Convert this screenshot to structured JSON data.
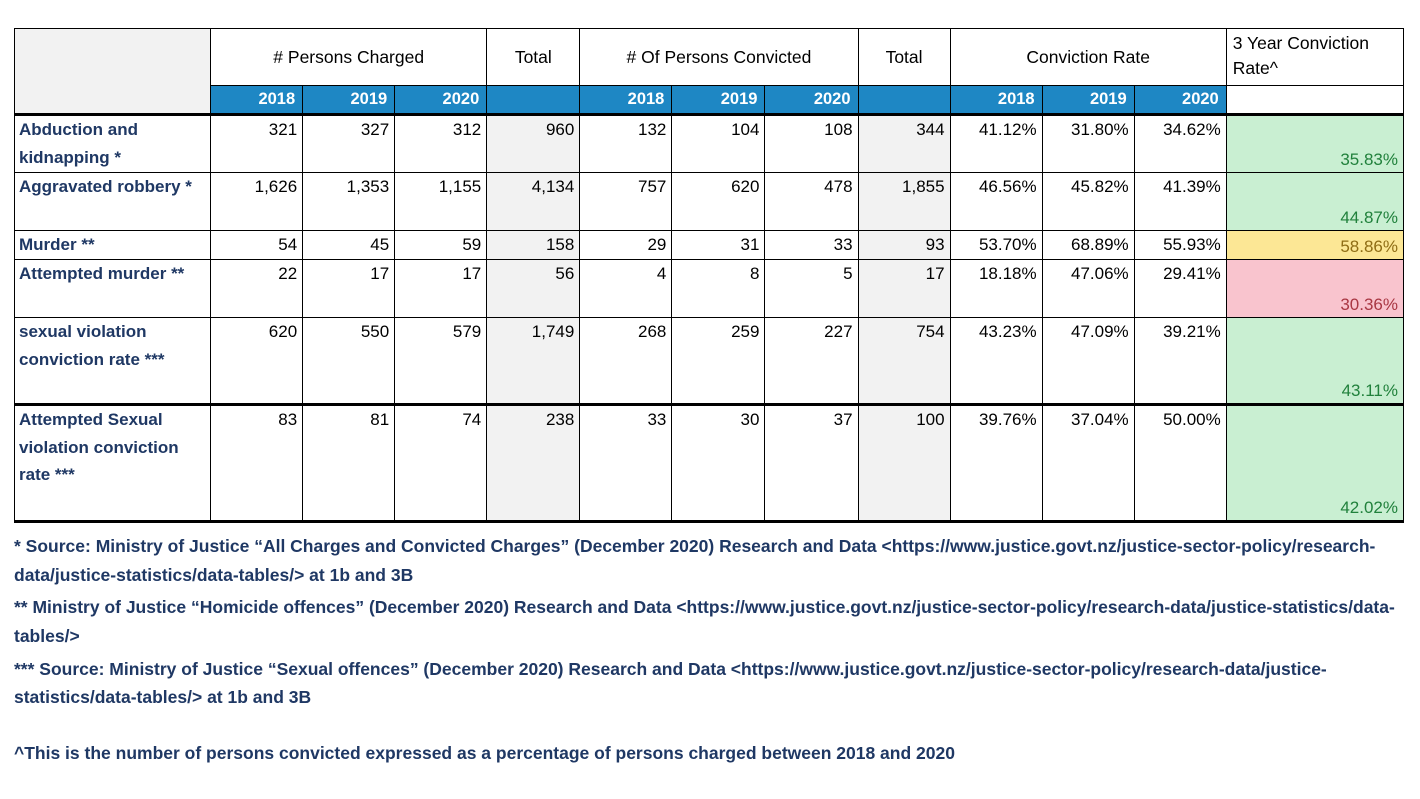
{
  "header": {
    "charged_group": "# Persons Charged",
    "total1": "Total",
    "convicted_group": "# Of Persons Convicted",
    "total2": "Total",
    "rate_group": "Conviction Rate",
    "three_year_group": "3 Year Conviction Rate^",
    "years": [
      "2018",
      "2019",
      "2020"
    ]
  },
  "rows": [
    {
      "label": "Abduction and kidnapping *",
      "charged": [
        "321",
        "327",
        "312"
      ],
      "charged_total": "960",
      "convicted": [
        "132",
        "104",
        "108"
      ],
      "convicted_total": "344",
      "rates": [
        "41.12%",
        "31.80%",
        "34.62%"
      ],
      "three_year_rate": "35.83%",
      "three_year_status": "good"
    },
    {
      "label": "Aggravated robbery *",
      "charged": [
        "1,626",
        "1,353",
        "1,155"
      ],
      "charged_total": "4,134",
      "convicted": [
        "757",
        "620",
        "478"
      ],
      "convicted_total": "1,855",
      "rates": [
        "46.56%",
        "45.82%",
        "41.39%"
      ],
      "three_year_rate": "44.87%",
      "three_year_status": "good"
    },
    {
      "label": "Murder **",
      "charged": [
        "54",
        "45",
        "59"
      ],
      "charged_total": "158",
      "convicted": [
        "29",
        "31",
        "33"
      ],
      "convicted_total": "93",
      "rates": [
        "53.70%",
        "68.89%",
        "55.93%"
      ],
      "three_year_rate": "58.86%",
      "three_year_status": "neutral"
    },
    {
      "label": "Attempted murder **",
      "charged": [
        "22",
        "17",
        "17"
      ],
      "charged_total": "56",
      "convicted": [
        "4",
        "8",
        "5"
      ],
      "convicted_total": "17",
      "rates": [
        "18.18%",
        "47.06%",
        "29.41%"
      ],
      "three_year_rate": "30.36%",
      "three_year_status": "bad"
    },
    {
      "label": "sexual violation conviction rate ***",
      "charged": [
        "620",
        "550",
        "579"
      ],
      "charged_total": "1,749",
      "convicted": [
        "268",
        "259",
        "227"
      ],
      "convicted_total": "754",
      "rates": [
        "43.23%",
        "47.09%",
        "39.21%"
      ],
      "three_year_rate": "43.11%",
      "three_year_status": "good"
    },
    {
      "label": "Attempted Sexual violation conviction rate ***",
      "charged": [
        "83",
        "81",
        "74"
      ],
      "charged_total": "238",
      "convicted": [
        "33",
        "30",
        "37"
      ],
      "convicted_total": "100",
      "rates": [
        "39.76%",
        "37.04%",
        "50.00%"
      ],
      "three_year_rate": "42.02%",
      "three_year_status": "good"
    }
  ],
  "footnotes": [
    "* Source: Ministry of Justice “All Charges and Convicted Charges” (December 2020) Research and Data <https://www.justice.govt.nz/justice-sector-policy/research-data/justice-statistics/data-tables/> at 1b and 3B",
    "** Ministry of Justice “Homicide offences” (December 2020) Research and Data <https://www.justice.govt.nz/justice-sector-policy/research-data/justice-statistics/data-tables/>",
    "*** Source: Ministry of Justice “Sexual offences” (December 2020) Research and Data <https://www.justice.govt.nz/justice-sector-policy/research-data/justice-statistics/data-tables/> at 1b and 3B",
    "^This is the number of persons convicted expressed as a percentage of persons charged between 2018 and 2020"
  ],
  "colors": {
    "header_blue": "#1e87c4",
    "label_navy": "#1f3864",
    "total_fill": "#f2f2f2",
    "good_fill": "#c9efd2",
    "good_text": "#21813c",
    "neutral_fill": "#fce795",
    "neutral_text": "#8f6d15",
    "bad_fill": "#f9c4ce",
    "bad_text": "#a93743"
  }
}
